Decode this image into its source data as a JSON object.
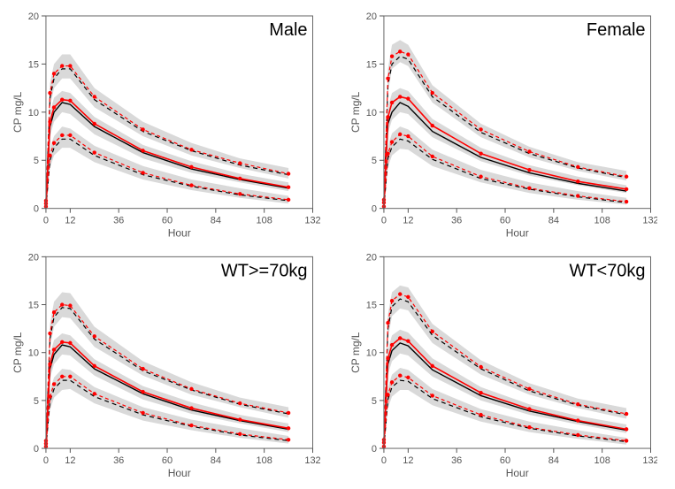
{
  "layout": {
    "rows": 2,
    "cols": 2,
    "background_color": "#ffffff",
    "panel_border_color": "#666666",
    "panel_border_width": 1
  },
  "axis": {
    "xlabel": "Hour",
    "ylabel": "CP mg/L",
    "xlim": [
      0,
      132
    ],
    "ylim": [
      0,
      20
    ],
    "xticks": [
      0,
      12,
      36,
      60,
      84,
      108,
      132
    ],
    "yticks": [
      0,
      5,
      10,
      15,
      20
    ],
    "label_fontsize": 12,
    "tick_fontsize": 11,
    "tick_color": "#555555"
  },
  "style": {
    "ribbon_fill": "#d9d9d9",
    "ribbon_opacity": 1.0,
    "obs_median_color": "#000000",
    "obs_median_dash": "none",
    "obs_median_width": 1.4,
    "obs_pct_color": "#000000",
    "obs_pct_dash": "5,4",
    "obs_pct_width": 1.2,
    "sim_median_color": "#ff0000",
    "sim_median_dash": "none",
    "sim_median_width": 1.6,
    "sim_pct_color": "#ff0000",
    "sim_pct_dash": "4,3",
    "sim_pct_width": 1.2,
    "marker_color": "#ff0000",
    "marker_radius": 2.2,
    "title_fontsize": 20,
    "title_color": "#000000"
  },
  "x_points": [
    0,
    2,
    4,
    8,
    12,
    24,
    48,
    72,
    96,
    120
  ],
  "panels": [
    {
      "title": "Male",
      "ribbon_upper_hi": [
        1.0,
        13.0,
        15.0,
        16.0,
        16.0,
        12.5,
        9.0,
        6.8,
        5.2,
        4.2
      ],
      "ribbon_upper_lo": [
        0.5,
        10.5,
        12.5,
        13.5,
        13.5,
        10.5,
        7.5,
        5.5,
        4.2,
        3.1
      ],
      "ribbon_med_hi": [
        0.6,
        10.0,
        11.5,
        12.2,
        12.0,
        9.5,
        6.6,
        4.9,
        3.6,
        2.7
      ],
      "ribbon_med_lo": [
        0.2,
        7.5,
        9.0,
        10.0,
        9.8,
        7.7,
        5.2,
        3.7,
        2.7,
        1.8
      ],
      "ribbon_lo_hi": [
        0.3,
        6.3,
        7.5,
        8.5,
        8.3,
        6.5,
        4.4,
        3.0,
        2.1,
        1.3
      ],
      "ribbon_lo_lo": [
        0.0,
        4.2,
        5.5,
        6.3,
        6.3,
        4.8,
        3.0,
        1.9,
        1.1,
        0.5
      ],
      "obs_upper": [
        0.7,
        11.5,
        13.5,
        14.5,
        14.5,
        11.3,
        8.0,
        6.0,
        4.5,
        3.5
      ],
      "obs_med": [
        0.4,
        8.5,
        10.0,
        11.0,
        10.8,
        8.5,
        5.8,
        4.1,
        3.0,
        2.1
      ],
      "obs_lower": [
        0.1,
        5.0,
        6.3,
        7.2,
        7.2,
        5.5,
        3.5,
        2.3,
        1.4,
        0.8
      ],
      "sim_upper": [
        0.8,
        12.0,
        14.0,
        14.8,
        14.8,
        11.6,
        8.2,
        6.1,
        4.7,
        3.6
      ],
      "sim_med": [
        0.5,
        9.0,
        10.5,
        11.3,
        11.2,
        8.8,
        6.0,
        4.3,
        3.1,
        2.2
      ],
      "sim_lower": [
        0.2,
        5.5,
        6.8,
        7.6,
        7.6,
        5.8,
        3.7,
        2.4,
        1.5,
        0.9
      ]
    },
    {
      "title": "Female",
      "ribbon_upper_hi": [
        1.2,
        14.5,
        17.0,
        17.5,
        17.0,
        12.8,
        8.8,
        6.4,
        4.8,
        3.9
      ],
      "ribbon_upper_lo": [
        0.6,
        12.0,
        14.5,
        15.2,
        14.8,
        11.0,
        7.4,
        5.3,
        3.9,
        2.9
      ],
      "ribbon_med_hi": [
        0.7,
        10.5,
        12.0,
        12.5,
        12.2,
        9.3,
        6.3,
        4.5,
        3.3,
        2.4
      ],
      "ribbon_med_lo": [
        0.3,
        7.8,
        9.2,
        10.0,
        9.8,
        7.4,
        4.9,
        3.4,
        2.4,
        1.6
      ],
      "ribbon_lo_hi": [
        0.3,
        6.5,
        7.8,
        8.5,
        8.2,
        6.1,
        4.0,
        2.7,
        1.8,
        1.1
      ],
      "ribbon_lo_lo": [
        0.0,
        4.3,
        5.5,
        6.2,
        6.1,
        4.4,
        2.7,
        1.6,
        0.9,
        0.4
      ],
      "obs_upper": [
        0.8,
        12.8,
        15.0,
        15.8,
        15.5,
        11.6,
        7.9,
        5.7,
        4.2,
        3.2
      ],
      "obs_med": [
        0.5,
        8.8,
        10.0,
        11.0,
        10.6,
        8.0,
        5.3,
        3.7,
        2.6,
        1.8
      ],
      "obs_lower": [
        0.1,
        5.2,
        6.4,
        7.2,
        7.0,
        5.1,
        3.1,
        2.0,
        1.2,
        0.6
      ],
      "sim_upper": [
        0.9,
        13.5,
        15.8,
        16.3,
        16.0,
        12.0,
        8.2,
        5.9,
        4.3,
        3.3
      ],
      "sim_med": [
        0.6,
        9.5,
        11.0,
        11.6,
        11.4,
        8.6,
        5.7,
        4.0,
        2.8,
        2.0
      ],
      "sim_lower": [
        0.2,
        5.7,
        6.9,
        7.7,
        7.5,
        5.4,
        3.3,
        2.1,
        1.3,
        0.7
      ]
    },
    {
      "title": "WT>=70kg",
      "ribbon_upper_hi": [
        1.0,
        13.0,
        15.3,
        16.3,
        16.2,
        12.7,
        9.1,
        6.9,
        5.3,
        4.3
      ],
      "ribbon_upper_lo": [
        0.5,
        10.5,
        12.7,
        13.7,
        13.6,
        10.6,
        7.6,
        5.6,
        4.3,
        3.2
      ],
      "ribbon_med_hi": [
        0.6,
        9.8,
        11.3,
        12.0,
        11.8,
        9.3,
        6.5,
        4.8,
        3.5,
        2.6
      ],
      "ribbon_med_lo": [
        0.2,
        7.3,
        8.8,
        9.8,
        9.7,
        7.6,
        5.1,
        3.6,
        2.6,
        1.7
      ],
      "ribbon_lo_hi": [
        0.3,
        6.1,
        7.4,
        8.3,
        8.2,
        6.4,
        4.3,
        3.0,
        2.1,
        1.3
      ],
      "ribbon_lo_lo": [
        0.0,
        4.0,
        5.3,
        6.1,
        6.2,
        4.7,
        2.9,
        1.9,
        1.1,
        0.5
      ],
      "obs_upper": [
        0.7,
        11.5,
        13.7,
        14.7,
        14.6,
        11.4,
        8.1,
        6.1,
        4.6,
        3.6
      ],
      "obs_med": [
        0.4,
        8.3,
        9.8,
        10.8,
        10.6,
        8.3,
        5.7,
        4.0,
        2.9,
        2.0
      ],
      "obs_lower": [
        0.1,
        4.9,
        6.2,
        7.1,
        7.1,
        5.4,
        3.5,
        2.3,
        1.4,
        0.8
      ],
      "sim_upper": [
        0.8,
        12.0,
        14.2,
        15.0,
        14.9,
        11.7,
        8.3,
        6.2,
        4.7,
        3.7
      ],
      "sim_med": [
        0.5,
        8.8,
        10.3,
        11.1,
        11.0,
        8.6,
        5.9,
        4.2,
        3.0,
        2.1
      ],
      "sim_lower": [
        0.2,
        5.4,
        6.7,
        7.5,
        7.5,
        5.7,
        3.7,
        2.4,
        1.5,
        0.9
      ]
    },
    {
      "title": "WT<70kg",
      "ribbon_upper_hi": [
        1.1,
        14.0,
        16.3,
        17.0,
        16.8,
        13.0,
        9.2,
        6.8,
        5.2,
        4.2
      ],
      "ribbon_upper_lo": [
        0.6,
        11.5,
        13.8,
        14.6,
        14.4,
        11.0,
        7.7,
        5.6,
        4.2,
        3.1
      ],
      "ribbon_med_hi": [
        0.7,
        10.3,
        11.8,
        12.4,
        12.1,
        9.4,
        6.4,
        4.6,
        3.4,
        2.5
      ],
      "ribbon_med_lo": [
        0.3,
        7.7,
        9.1,
        9.9,
        9.7,
        7.5,
        5.0,
        3.5,
        2.5,
        1.6
      ],
      "ribbon_lo_hi": [
        0.3,
        6.4,
        7.7,
        8.4,
        8.2,
        6.2,
        4.1,
        2.8,
        1.9,
        1.1
      ],
      "ribbon_lo_lo": [
        0.0,
        4.2,
        5.4,
        6.1,
        6.1,
        4.5,
        2.8,
        1.7,
        1.0,
        0.4
      ],
      "obs_upper": [
        0.8,
        12.5,
        14.8,
        15.6,
        15.3,
        11.8,
        8.3,
        6.0,
        4.5,
        3.5
      ],
      "obs_med": [
        0.5,
        8.8,
        10.2,
        11.0,
        10.7,
        8.2,
        5.5,
        3.9,
        2.8,
        1.9
      ],
      "obs_lower": [
        0.1,
        5.1,
        6.4,
        7.1,
        7.0,
        5.2,
        3.3,
        2.1,
        1.3,
        0.7
      ],
      "sim_upper": [
        0.9,
        13.1,
        15.4,
        16.1,
        15.8,
        12.2,
        8.5,
        6.2,
        4.6,
        3.6
      ],
      "sim_med": [
        0.6,
        9.4,
        10.8,
        11.5,
        11.2,
        8.6,
        5.8,
        4.1,
        2.9,
        2.0
      ],
      "sim_lower": [
        0.2,
        5.6,
        6.9,
        7.6,
        7.4,
        5.5,
        3.5,
        2.2,
        1.4,
        0.8
      ]
    }
  ]
}
